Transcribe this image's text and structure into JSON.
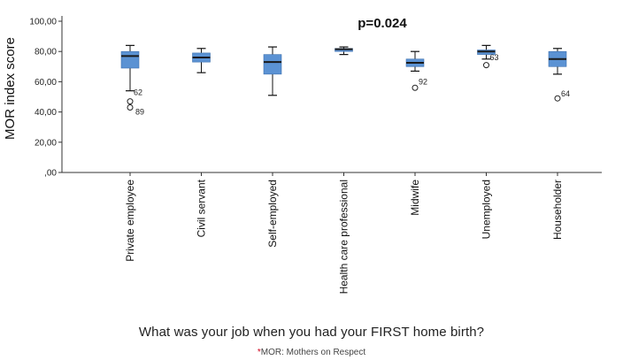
{
  "chart_data": {
    "type": "boxplot",
    "title": "",
    "annotation": "p=0.024",
    "xlabel": "What was your job when you had your FIRST home birth?",
    "ylabel": "MOR index score",
    "ylim": [
      0,
      100
    ],
    "yticks": [
      "100,00",
      "80,00",
      "60,00",
      "40,00",
      "20,00",
      ",00"
    ],
    "ytick_values": [
      100,
      80,
      60,
      40,
      20,
      0
    ],
    "grid": false,
    "box_color": "#5b92d3",
    "median_color": "#1a1a1a",
    "categories": [
      "Private employee",
      "Civil servant",
      "Self-employed",
      "Health care professional",
      "Midwife",
      "Unemployed",
      "Householder"
    ],
    "boxes": [
      {
        "whisker_low": 54,
        "q1": 69,
        "median": 77,
        "q3": 80,
        "whisker_high": 84,
        "outliers": [
          {
            "value": 47,
            "label": ""
          },
          {
            "value": 43,
            "label": "89"
          }
        ],
        "outlier_label": "62",
        "outlier_label_value": 53
      },
      {
        "whisker_low": 66,
        "q1": 73,
        "median": 76,
        "q3": 79,
        "whisker_high": 82,
        "outliers": [],
        "outlier_label": "",
        "outlier_label_value": null
      },
      {
        "whisker_low": 51,
        "q1": 65,
        "median": 73,
        "q3": 78,
        "whisker_high": 83,
        "outliers": [],
        "outlier_label": "",
        "outlier_label_value": null
      },
      {
        "whisker_low": 78,
        "q1": 80,
        "median": 81.5,
        "q3": 82,
        "whisker_high": 83,
        "outliers": [],
        "outlier_label": "",
        "outlier_label_value": null
      },
      {
        "whisker_low": 67,
        "q1": 70,
        "median": 72.5,
        "q3": 75,
        "whisker_high": 80,
        "outliers": [
          {
            "value": 56,
            "label": ""
          }
        ],
        "outlier_label": "92",
        "outlier_label_value": 60
      },
      {
        "whisker_low": 75,
        "q1": 78,
        "median": 80,
        "q3": 81,
        "whisker_high": 84,
        "outliers": [
          {
            "value": 71,
            "label": ""
          }
        ],
        "outlier_label": "63",
        "outlier_label_value": 76
      },
      {
        "whisker_low": 65,
        "q1": 70,
        "median": 75,
        "q3": 80,
        "whisker_high": 82,
        "outliers": [
          {
            "value": 49,
            "label": ""
          }
        ],
        "outlier_label": "64",
        "outlier_label_value": 52
      }
    ]
  },
  "footnote": {
    "star": "*",
    "text": "MOR: Mothers on Respect"
  }
}
